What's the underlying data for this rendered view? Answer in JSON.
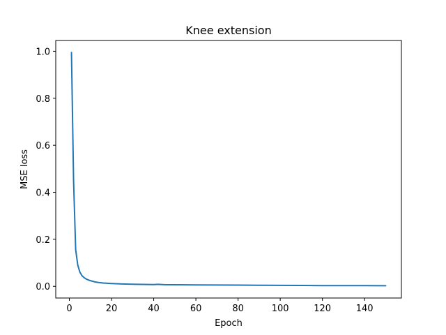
{
  "chart_data": {
    "type": "line",
    "title": "Knee extension",
    "xlabel": "Epoch",
    "ylabel": "MSE loss",
    "xlim": [
      -6.45,
      157.45
    ],
    "ylim": [
      -0.0498,
      1.0458
    ],
    "xticks": [
      0,
      20,
      40,
      60,
      80,
      100,
      120,
      140
    ],
    "yticks": [
      0.0,
      0.2,
      0.4,
      0.6,
      0.8,
      1.0
    ],
    "xtick_labels": [
      "0",
      "20",
      "40",
      "60",
      "80",
      "100",
      "120",
      "140"
    ],
    "ytick_labels": [
      "0.0",
      "0.2",
      "0.4",
      "0.6",
      "0.8",
      "1.0"
    ],
    "grid": false,
    "colors": {
      "line": "#1f77b4"
    },
    "series": [
      {
        "x": [
          1,
          2,
          3,
          4,
          5,
          6,
          7,
          8,
          9,
          10,
          12,
          14,
          16,
          18,
          20,
          25,
          30,
          35,
          40,
          42,
          45,
          50,
          60,
          70,
          80,
          90,
          100,
          110,
          120,
          130,
          140,
          150
        ],
        "values": [
          0.995,
          0.45,
          0.155,
          0.09,
          0.06,
          0.045,
          0.037,
          0.031,
          0.027,
          0.024,
          0.019,
          0.016,
          0.014,
          0.013,
          0.012,
          0.01,
          0.009,
          0.008,
          0.0075,
          0.0085,
          0.007,
          0.0065,
          0.006,
          0.0055,
          0.005,
          0.0045,
          0.004,
          0.0035,
          0.003,
          0.003,
          0.0028,
          0.0025
        ]
      }
    ]
  }
}
